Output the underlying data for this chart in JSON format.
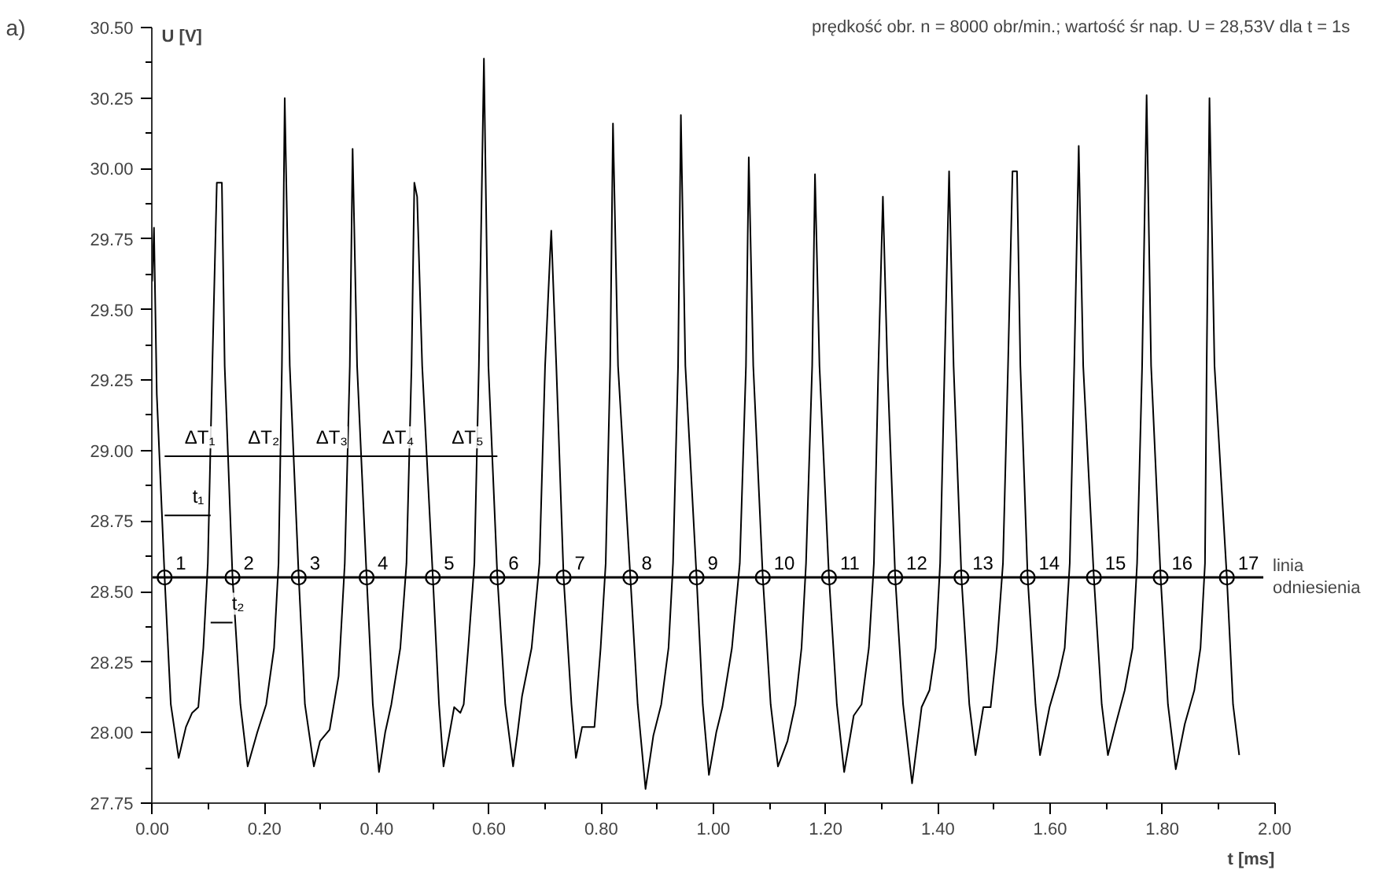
{
  "chart_data": {
    "type": "line",
    "title": "prędkość obr. n = 8000 obr/min.; wartość śr nap. U = 28,53V dla t = 1s",
    "xlabel": "t [ms]",
    "ylabel": "U [V]",
    "annotations": [
      "a)",
      {
        "text": "ΔT₁",
        "x": 0.038,
        "y": 28.98
      },
      {
        "text": "ΔT₂",
        "x": 0.151,
        "y": 28.98
      },
      {
        "text": "ΔT₃",
        "x": 0.272,
        "y": 28.98
      },
      {
        "text": "ΔT₄",
        "x": 0.39,
        "y": 28.98
      },
      {
        "text": "ΔT₅",
        "x": 0.514,
        "y": 28.98
      },
      {
        "text": "t₁",
        "x": 0.052,
        "y": 28.77
      },
      {
        "text": "t₂",
        "x": 0.122,
        "y": 28.39
      },
      {
        "text": "10",
        "x": 1.088,
        "y": 28.55
      },
      {
        "text": "11",
        "x": 1.206,
        "y": 28.55
      },
      {
        "text": "12",
        "x": 1.324,
        "y": 28.55
      },
      {
        "text": "13",
        "x": 1.442,
        "y": 28.55
      },
      {
        "text": "14",
        "x": 1.56,
        "y": 28.55
      },
      {
        "text": "15",
        "x": 1.678,
        "y": 28.55
      },
      {
        "text": "16",
        "x": 1.797,
        "y": 28.55
      },
      {
        "text": "17",
        "x": 1.915,
        "y": 28.55
      },
      {
        "text": "1",
        "x": 0.022,
        "y": 28.55
      },
      {
        "text": "2",
        "x": 0.143,
        "y": 28.55
      },
      {
        "text": "3",
        "x": 0.261,
        "y": 28.55
      },
      {
        "text": "4",
        "x": 0.382,
        "y": 28.55
      },
      {
        "text": "5",
        "x": 0.5,
        "y": 28.55
      },
      {
        "text": "6",
        "x": 0.615,
        "y": 28.55
      },
      {
        "text": "7",
        "x": 0.733,
        "y": 28.55
      },
      {
        "text": "8",
        "x": 0.852,
        "y": 28.55
      },
      {
        "text": "9",
        "x": 0.97,
        "y": 28.55
      }
    ],
    "xlim": [
      0,
      2
    ],
    "ylim": [
      27.75,
      30.5
    ],
    "xticks": [
      {
        "value": 0,
        "label": "0.00"
      },
      {
        "value": 0.1,
        "label": null
      },
      {
        "value": 0.2,
        "label": "0.20"
      },
      {
        "value": 0.3,
        "label": null
      },
      {
        "value": 0.4,
        "label": "0.40"
      },
      {
        "value": 0.5,
        "label": null
      },
      {
        "value": 0.6,
        "label": "0.60"
      },
      {
        "value": 0.7,
        "label": null
      },
      {
        "value": 0.8,
        "label": "0.80"
      },
      {
        "value": 0.9,
        "label": null
      },
      {
        "value": 1.0,
        "label": "1.00"
      },
      {
        "value": 1.1,
        "label": null
      },
      {
        "value": 1.2,
        "label": "1.20"
      },
      {
        "value": 1.3,
        "label": null
      },
      {
        "value": 1.4,
        "label": "1.40"
      },
      {
        "value": 1.5,
        "label": null
      },
      {
        "value": 1.6,
        "label": "1.60"
      },
      {
        "value": 1.7,
        "label": null
      },
      {
        "value": 1.8,
        "label": "1.80"
      },
      {
        "value": 1.9,
        "label": null
      },
      {
        "value": 2.0,
        "label": "2.00"
      }
    ],
    "yticks": [
      {
        "value": 27.75,
        "label": "27.75"
      },
      {
        "value": 27.875,
        "label": null
      },
      {
        "value": 28.0,
        "label": "28.00"
      },
      {
        "value": 28.125,
        "label": null
      },
      {
        "value": 28.25,
        "label": "28.25"
      },
      {
        "value": 28.375,
        "label": null
      },
      {
        "value": 28.5,
        "label": "28.50"
      },
      {
        "value": 28.625,
        "label": null
      },
      {
        "value": 28.75,
        "label": "28.75"
      },
      {
        "value": 28.875,
        "label": null
      },
      {
        "value": 29.0,
        "label": "29.00"
      },
      {
        "value": 29.125,
        "label": null
      },
      {
        "value": 29.25,
        "label": "29.25"
      },
      {
        "value": 29.375,
        "label": null
      },
      {
        "value": 29.5,
        "label": "29.50"
      },
      {
        "value": 29.625,
        "label": null
      },
      {
        "value": 29.75,
        "label": "29.75"
      },
      {
        "value": 29.875,
        "label": null
      },
      {
        "value": 30.0,
        "label": "30.00"
      },
      {
        "value": 30.125,
        "label": null
      },
      {
        "value": 30.25,
        "label": "30.25"
      },
      {
        "value": 30.375,
        "label": null
      },
      {
        "value": 30.5,
        "label": "30.50"
      }
    ],
    "ref_lines": [
      {
        "axis": "y",
        "value": 28.55,
        "label": "linia odniesienia",
        "color": "#000000"
      }
    ],
    "series": [
      {
        "color": "#000000",
        "x": [
          0.0,
          0.003,
          0.008,
          0.022,
          0.033,
          0.047,
          0.06,
          0.071,
          0.082,
          0.091,
          0.099,
          0.107,
          0.115,
          0.124,
          0.129,
          0.143,
          0.157,
          0.17,
          0.187,
          0.203,
          0.217,
          0.225,
          0.231,
          0.236,
          0.245,
          0.261,
          0.272,
          0.288,
          0.299,
          0.316,
          0.332,
          0.343,
          0.352,
          0.357,
          0.365,
          0.382,
          0.393,
          0.404,
          0.415,
          0.426,
          0.442,
          0.453,
          0.462,
          0.467,
          0.472,
          0.481,
          0.5,
          0.511,
          0.519,
          0.53,
          0.538,
          0.549,
          0.555,
          0.563,
          0.574,
          0.582,
          0.591,
          0.599,
          0.615,
          0.629,
          0.643,
          0.651,
          0.659,
          0.676,
          0.69,
          0.7,
          0.709,
          0.711,
          0.72,
          0.733,
          0.747,
          0.755,
          0.766,
          0.788,
          0.799,
          0.808,
          0.816,
          0.821,
          0.83,
          0.852,
          0.865,
          0.879,
          0.893,
          0.907,
          0.92,
          0.928,
          0.937,
          0.942,
          0.95,
          0.97,
          0.981,
          0.992,
          1.005,
          1.016,
          1.033,
          1.047,
          1.058,
          1.063,
          1.071,
          1.088,
          1.102,
          1.115,
          1.132,
          1.146,
          1.157,
          1.165,
          1.176,
          1.181,
          1.189,
          1.206,
          1.22,
          1.233,
          1.25,
          1.264,
          1.277,
          1.286,
          1.294,
          1.302,
          1.31,
          1.324,
          1.338,
          1.354,
          1.371,
          1.385,
          1.396,
          1.404,
          1.412,
          1.42,
          1.428,
          1.442,
          1.456,
          1.467,
          1.481,
          1.494,
          1.505,
          1.516,
          1.525,
          1.533,
          1.541,
          1.547,
          1.56,
          1.574,
          1.582,
          1.599,
          1.615,
          1.626,
          1.635,
          1.643,
          1.651,
          1.659,
          1.678,
          1.692,
          1.703,
          1.717,
          1.733,
          1.747,
          1.755,
          1.764,
          1.772,
          1.78,
          1.797,
          1.81,
          1.824,
          1.84,
          1.857,
          1.868,
          1.876,
          1.879,
          1.884,
          1.893,
          1.915,
          1.926,
          1.937
        ],
        "values": [
          29.6,
          29.79,
          29.2,
          28.55,
          28.1,
          27.91,
          28.02,
          28.07,
          28.09,
          28.3,
          28.6,
          29.3,
          29.95,
          29.95,
          29.3,
          28.55,
          28.1,
          27.88,
          28.0,
          28.1,
          28.3,
          28.6,
          29.3,
          30.25,
          29.3,
          28.55,
          28.1,
          27.88,
          27.97,
          28.01,
          28.2,
          28.6,
          29.3,
          30.07,
          29.3,
          28.55,
          28.1,
          27.86,
          28.0,
          28.1,
          28.3,
          28.6,
          29.3,
          29.95,
          29.9,
          29.3,
          28.55,
          28.1,
          27.88,
          28.0,
          28.09,
          28.07,
          28.1,
          28.3,
          28.6,
          29.3,
          30.39,
          29.3,
          28.55,
          28.1,
          27.88,
          28.0,
          28.13,
          28.3,
          28.6,
          29.3,
          29.7,
          29.78,
          29.3,
          28.55,
          28.1,
          27.91,
          28.02,
          28.02,
          28.3,
          28.6,
          29.3,
          30.16,
          29.3,
          28.55,
          28.1,
          27.8,
          27.99,
          28.1,
          28.3,
          28.6,
          29.3,
          30.19,
          29.3,
          28.55,
          28.1,
          27.85,
          28.0,
          28.09,
          28.3,
          28.6,
          29.3,
          30.04,
          29.3,
          28.55,
          28.1,
          27.88,
          27.97,
          28.1,
          28.3,
          28.6,
          29.3,
          29.98,
          29.3,
          28.55,
          28.1,
          27.86,
          28.06,
          28.1,
          28.3,
          28.6,
          29.3,
          29.9,
          29.3,
          28.55,
          28.1,
          27.82,
          28.09,
          28.15,
          28.3,
          28.6,
          29.3,
          29.99,
          29.3,
          28.55,
          28.1,
          27.92,
          28.09,
          28.09,
          28.3,
          28.6,
          29.3,
          29.99,
          29.99,
          29.3,
          28.55,
          28.1,
          27.92,
          28.09,
          28.2,
          28.3,
          28.6,
          29.3,
          30.08,
          29.3,
          28.55,
          28.1,
          27.92,
          28.03,
          28.15,
          28.3,
          28.6,
          29.3,
          30.26,
          29.3,
          28.55,
          28.1,
          27.87,
          28.03,
          28.15,
          28.3,
          28.6,
          29.3,
          30.25,
          29.3,
          28.55,
          28.1,
          27.92
        ]
      },
      {
        "type": "scatter",
        "marker": "circle",
        "color": "#000000",
        "x": [
          0.022,
          0.143,
          0.261,
          0.382,
          0.5,
          0.615,
          0.733,
          0.852,
          0.97,
          1.088,
          1.206,
          1.324,
          1.442,
          1.56,
          1.678,
          1.797,
          1.915
        ],
        "values": [
          28.55,
          28.55,
          28.55,
          28.55,
          28.55,
          28.55,
          28.55,
          28.55,
          28.55,
          28.55,
          28.55,
          28.55,
          28.55,
          28.55,
          28.55,
          28.55,
          28.55
        ]
      },
      {
        "color": "#000000",
        "x": [
          0.022,
          0.143,
          0.261,
          0.382,
          0.5,
          0.615
        ],
        "values": [
          28.98,
          28.98,
          28.98,
          28.98,
          28.98,
          28.98
        ]
      },
      {
        "color": "#000000",
        "x": [
          0.022,
          0.104
        ],
        "values": [
          28.77,
          28.77
        ]
      },
      {
        "color": "#000000",
        "x": [
          0.104,
          0.143
        ],
        "values": [
          28.39,
          28.39
        ]
      }
    ]
  }
}
